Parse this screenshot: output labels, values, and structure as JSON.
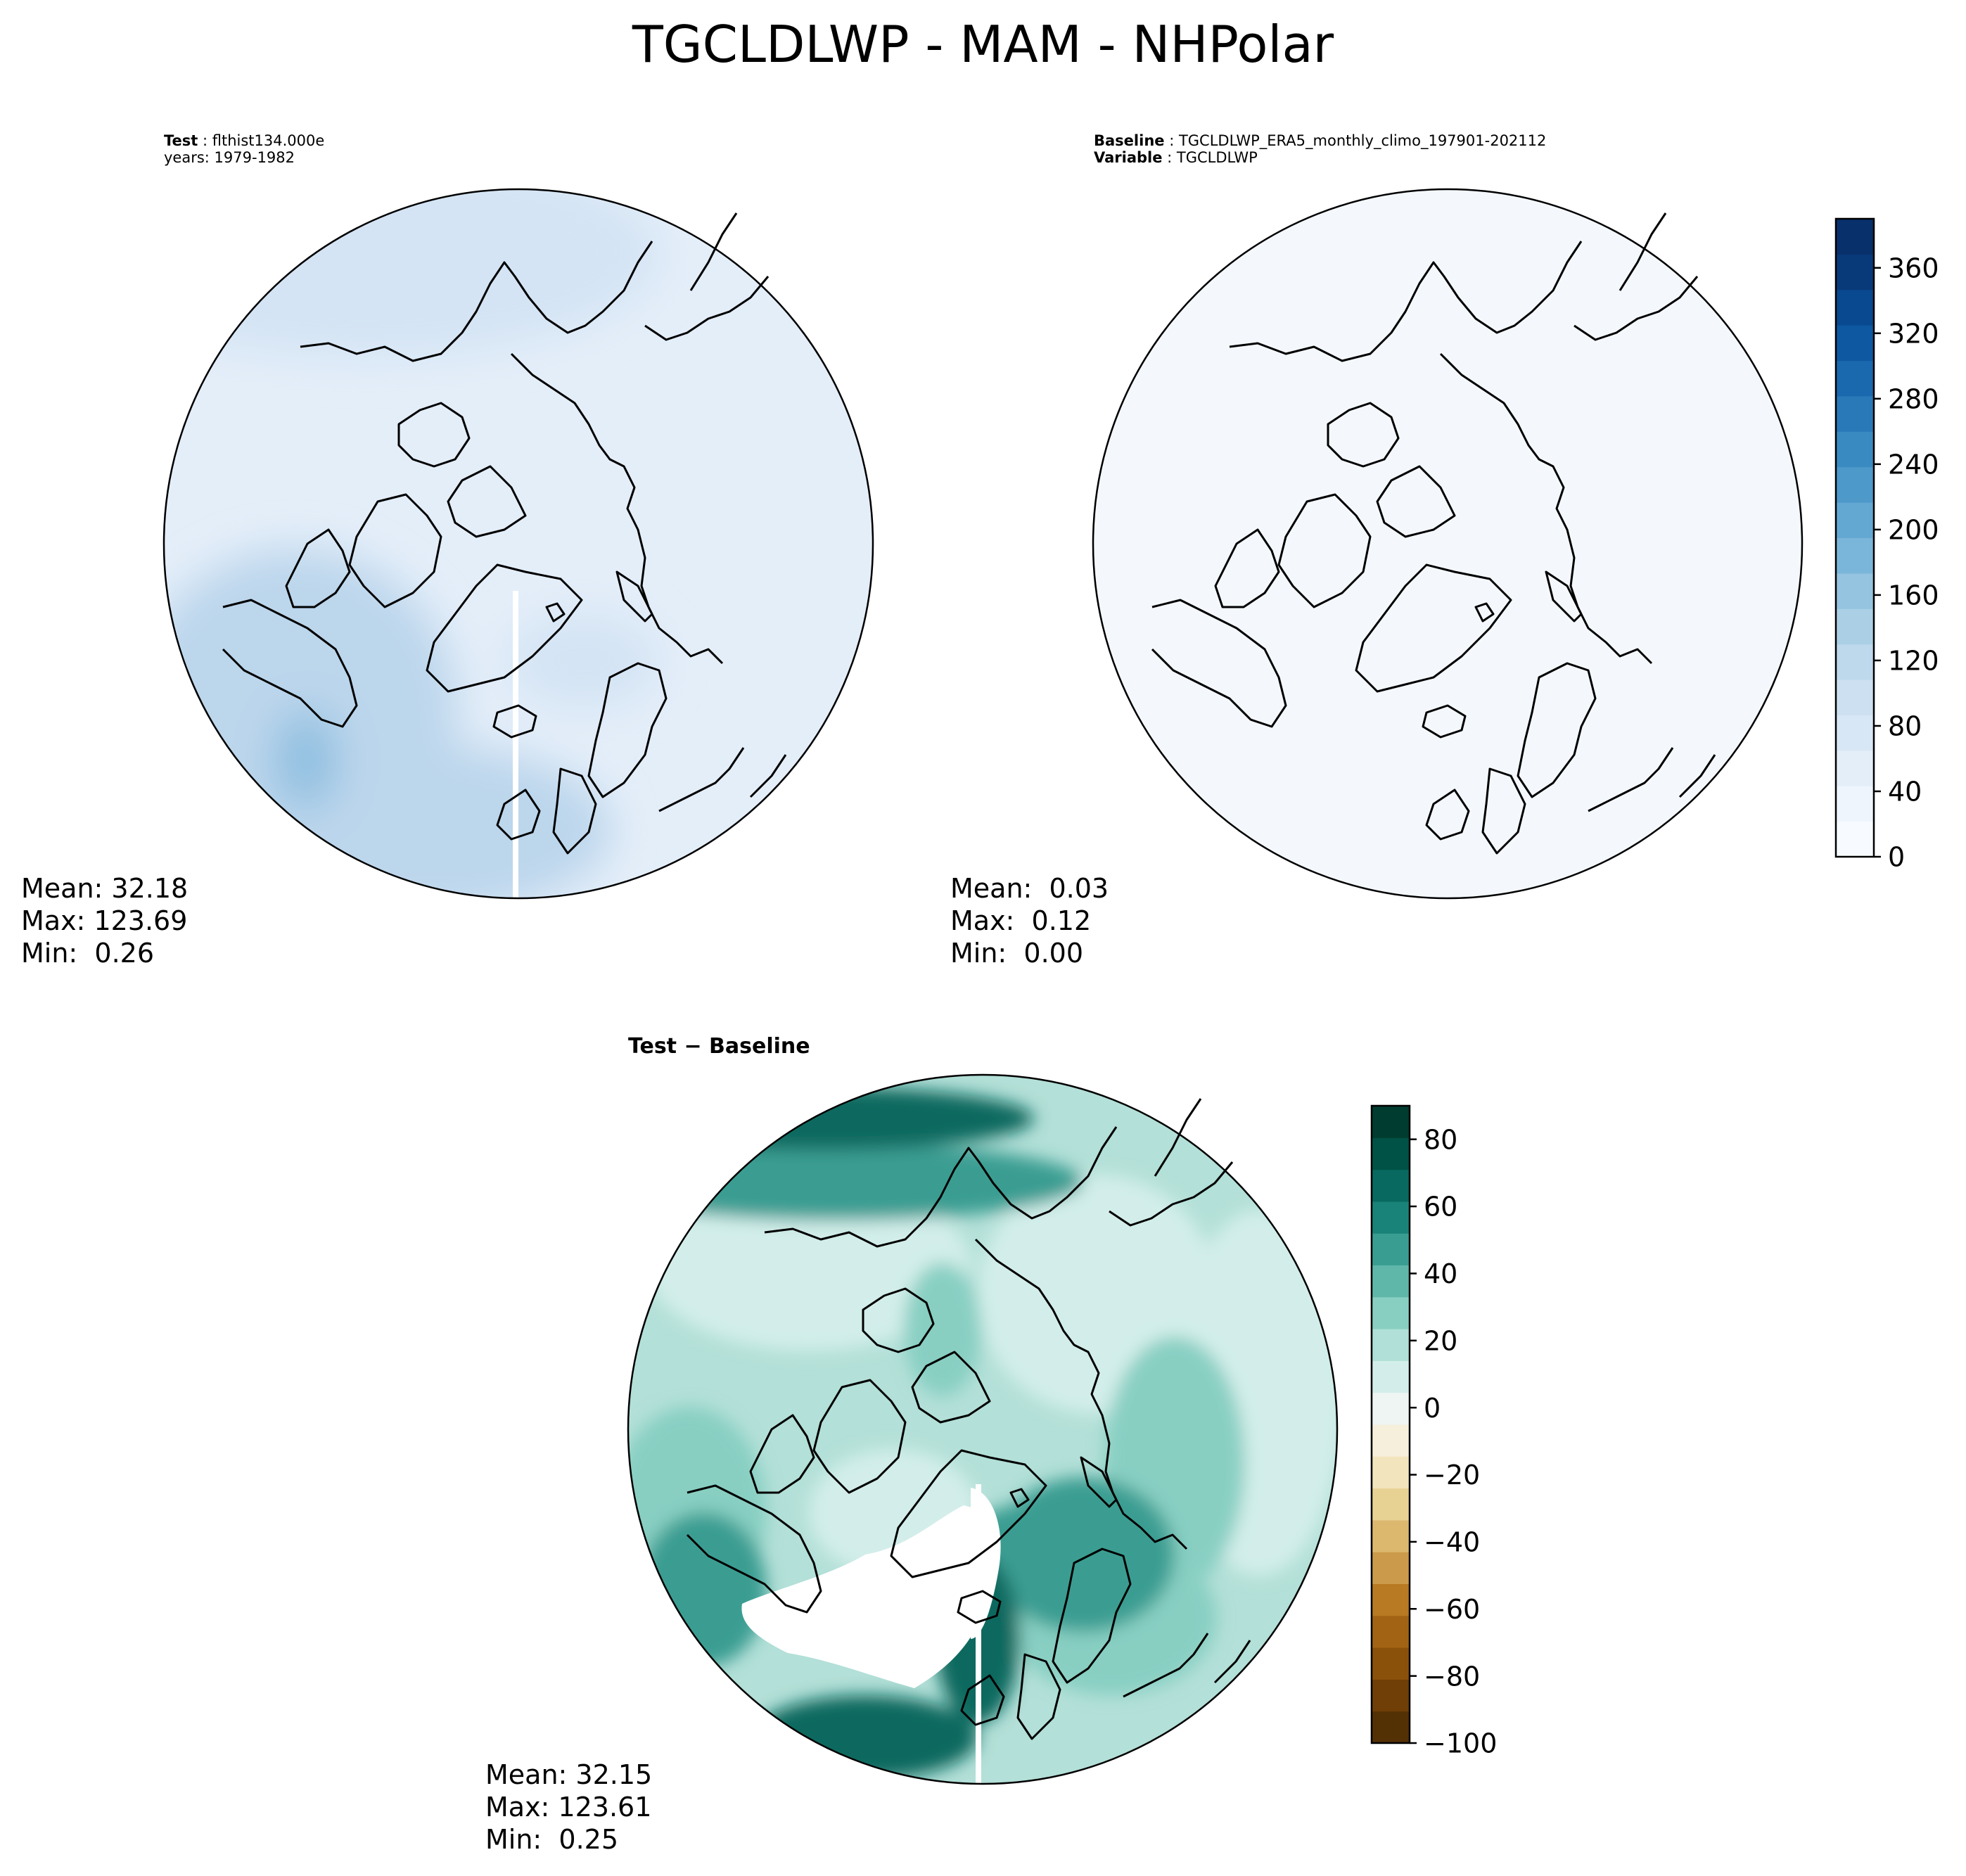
{
  "figure": {
    "title": "TGCLDLWP - MAM - NHPolar"
  },
  "panels": {
    "test": {
      "label_key": "Test",
      "label_value": "flthist134.000e",
      "sublabel": "years: 1979-1982",
      "stats": {
        "mean": "Mean: 32.18",
        "max": "Max: 123.69",
        "min": "Min:  0.26"
      }
    },
    "baseline": {
      "label_key": "Baseline",
      "label_value": "TGCLDLWP_ERA5_monthly_climo_197901-202112",
      "sublabel_key": "Variable",
      "sublabel_value": "TGCLDLWP",
      "stats": {
        "mean": "Mean:  0.03",
        "max": "Max:  0.12",
        "min": "Min:  0.00"
      }
    },
    "diff": {
      "title": "Test − Baseline",
      "stats": {
        "mean": "Mean: 32.15",
        "max": "Max: 123.61",
        "min": "Min:  0.25"
      }
    }
  },
  "colorbars": {
    "blues": {
      "ticks": [
        "0",
        "40",
        "80",
        "120",
        "160",
        "200",
        "240",
        "280",
        "320",
        "360"
      ],
      "tick_values": [
        0,
        40,
        80,
        120,
        160,
        200,
        240,
        280,
        320,
        360
      ],
      "range": [
        0,
        390
      ],
      "colors": [
        "#f7fbff",
        "#eef5fc",
        "#e3eef9",
        "#d8e7f5",
        "#cde0f1",
        "#bed8ec",
        "#abd0e6",
        "#94c4df",
        "#7ab6d9",
        "#62a8d3",
        "#4c99ca",
        "#3a8ac2",
        "#2979b9",
        "#1a68ae",
        "#0d58a1",
        "#084990",
        "#083a7a",
        "#08306b"
      ]
    },
    "brbg": {
      "ticks": [
        "80",
        "60",
        "40",
        "20",
        "0",
        "−20",
        "−40",
        "−60",
        "−80",
        "−100"
      ],
      "tick_values": [
        80,
        60,
        40,
        20,
        0,
        -20,
        -40,
        -60,
        -80,
        -100
      ],
      "range": [
        -100,
        90
      ],
      "colors": [
        "#543005",
        "#6f3f07",
        "#8a510a",
        "#a26414",
        "#b87a22",
        "#cb9a4b",
        "#dcb86f",
        "#e8d293",
        "#f2e4bc",
        "#f6efdb",
        "#eef5f3",
        "#d3eeea",
        "#b0e0d7",
        "#88cfc2",
        "#5fb7aa",
        "#3a9d92",
        "#1a8379",
        "#07695f",
        "#005246",
        "#003c30"
      ]
    }
  },
  "maps": {
    "projection": "north polar stereographic",
    "fill_colors": {
      "test_ocean": "#e4eef9",
      "test_atlantic": "#bcd6ec",
      "test_atlantic_max": "#8ebfe0",
      "test_pacific": "#d4e4f4",
      "baseline": "#f4f8fd",
      "diff_base": "#b3e0d8",
      "diff_light": "#d3eeea",
      "diff_medium": "#88cfc2",
      "diff_dark": "#3a9d92",
      "diff_darkest": "#07695f",
      "diff_missing": "#ffffff"
    }
  }
}
